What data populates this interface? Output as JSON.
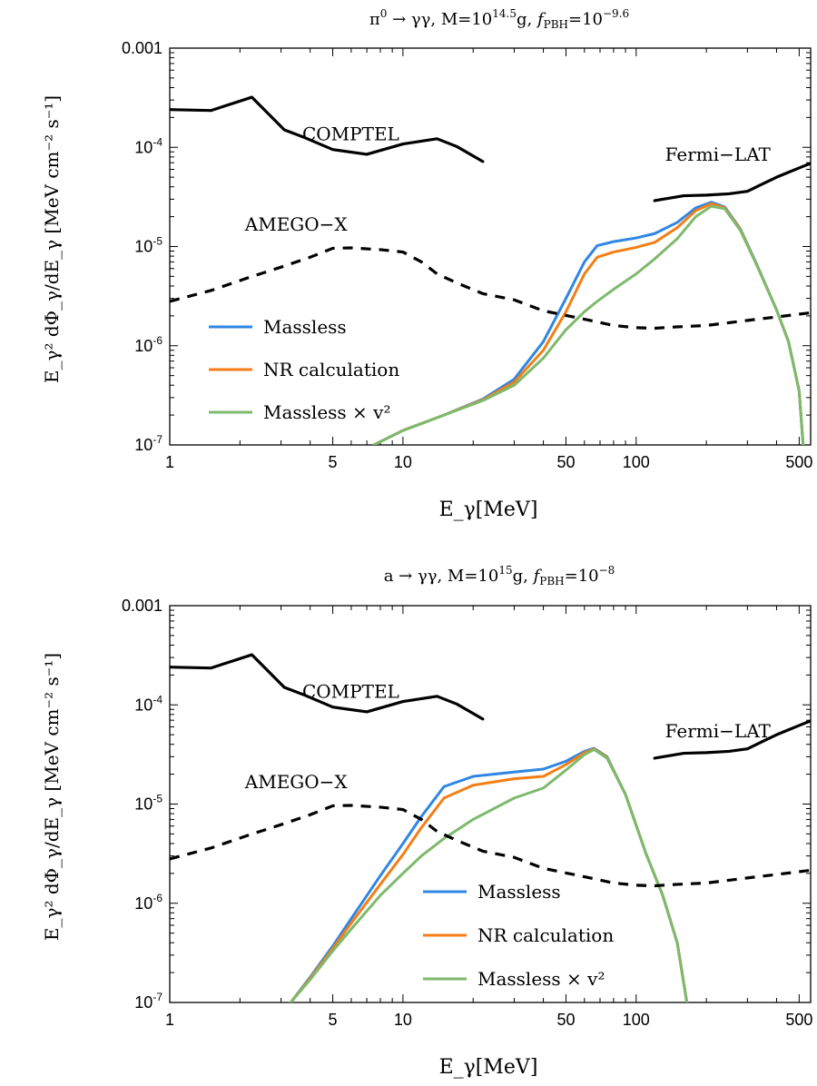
{
  "chart_data": [
    {
      "type": "line",
      "title": "π⁰ → γγ,  M=10¹⁴·⁵g, f_PBH=10⁻⁹·⁶",
      "title_parts": {
        "process": "π",
        "process_sup": "0",
        "arrow": " → γγ,  M=10",
        "mass_exp": "14.5",
        "mass_unit": "g, ",
        "f": "f",
        "f_sub": "PBH",
        "f_eq": "=10",
        "f_exp": "−9.6"
      },
      "xlabel": "E_γ[MeV]",
      "ylabel": "E_γ² dΦ_γ/dE_γ [MeV cm⁻² s⁻¹]",
      "x_scale": "log",
      "y_scale": "log",
      "xlim": [
        1,
        560
      ],
      "ylim": [
        1e-07,
        0.001
      ],
      "x_ticks": [
        {
          "v": 1,
          "label": "1"
        },
        {
          "v": 5,
          "label": "5"
        },
        {
          "v": 10,
          "label": "10"
        },
        {
          "v": 50,
          "label": "50"
        },
        {
          "v": 100,
          "label": "100"
        },
        {
          "v": 500,
          "label": "500"
        }
      ],
      "y_ticks": [
        {
          "v": 0.001,
          "label": "0.001",
          "kind": "plain"
        },
        {
          "v": 0.0001,
          "label": "10",
          "exp": "-4"
        },
        {
          "v": 1e-05,
          "label": "10",
          "exp": "-5"
        },
        {
          "v": 1e-06,
          "label": "10",
          "exp": "-6"
        },
        {
          "v": 1e-07,
          "label": "10",
          "exp": "-7"
        }
      ],
      "legend_position": "bottom-left",
      "legend": [
        "Massless",
        "NR calculation",
        "Massless × v²"
      ],
      "annotations": [
        {
          "text": "COMPTEL",
          "x": 3.7,
          "y": 0.000118
        },
        {
          "text": "AMEGO−X",
          "x": 2.1,
          "y": 1.45e-05
        },
        {
          "text": "Fermi−LAT",
          "x": 133,
          "y": 7.3e-05
        }
      ],
      "series": [
        {
          "name": "Massless",
          "color": "#2f86e4",
          "x": [
            7.5,
            10,
            15,
            22,
            30,
            40,
            50,
            60,
            68,
            80,
            100,
            120,
            150,
            180,
            210,
            240,
            280,
            330,
            400,
            450,
            500,
            520
          ],
          "y": [
            1e-07,
            1.4e-07,
            2e-07,
            2.9e-07,
            4.6e-07,
            1.1e-06,
            3e-06,
            7e-06,
            1.02e-05,
            1.12e-05,
            1.22e-05,
            1.35e-05,
            1.75e-05,
            2.45e-05,
            2.8e-05,
            2.5e-05,
            1.5e-05,
            6.5e-06,
            2.3e-06,
            1.1e-06,
            3.5e-07,
            1e-07
          ]
        },
        {
          "name": "NR calculation",
          "color": "#f47e15",
          "x": [
            7.5,
            10,
            15,
            22,
            30,
            40,
            50,
            60,
            68,
            80,
            100,
            120,
            150,
            180,
            210,
            240,
            280,
            330,
            400,
            450,
            500,
            520
          ],
          "y": [
            1e-07,
            1.4e-07,
            2e-07,
            2.85e-07,
            4.3e-07,
            9e-07,
            2.2e-06,
            5.3e-06,
            7.8e-06,
            8.8e-06,
            9.8e-06,
            1.1e-05,
            1.55e-05,
            2.3e-05,
            2.7e-05,
            2.45e-05,
            1.48e-05,
            6.4e-06,
            2.3e-06,
            1.1e-06,
            3.5e-07,
            1e-07
          ]
        },
        {
          "name": "Massless × v²",
          "color": "#7dba6c",
          "x": [
            7.5,
            10,
            15,
            22,
            30,
            40,
            50,
            60,
            68,
            80,
            100,
            120,
            150,
            180,
            210,
            240,
            280,
            330,
            400,
            450,
            500,
            520
          ],
          "y": [
            1e-07,
            1.4e-07,
            2e-07,
            2.8e-07,
            4e-07,
            7.5e-07,
            1.45e-06,
            2.2e-06,
            2.8e-06,
            3.7e-06,
            5.3e-06,
            7.5e-06,
            1.2e-05,
            2e-05,
            2.55e-05,
            2.4e-05,
            1.45e-05,
            6.4e-06,
            2.3e-06,
            1.1e-06,
            3.5e-07,
            1e-07
          ]
        },
        {
          "name": "COMPTEL",
          "color": "#000000",
          "dash": false,
          "x": [
            1,
            1.5,
            2.25,
            3.1,
            3.8,
            5,
            7,
            10,
            14,
            17,
            22
          ],
          "y": [
            0.00024,
            0.000235,
            0.00032,
            0.00015,
            0.000125,
            9.5e-05,
            8.5e-05,
            0.000108,
            0.000122,
            0.000102,
            7.2e-05
          ]
        },
        {
          "name": "Fermi−LAT",
          "color": "#000000",
          "dash": false,
          "x": [
            120,
            160,
            200,
            250,
            300,
            350,
            400,
            450,
            500,
            560
          ],
          "y": [
            2.9e-05,
            3.25e-05,
            3.3e-05,
            3.4e-05,
            3.6e-05,
            4.3e-05,
            5e-05,
            5.6e-05,
            6.2e-05,
            6.9e-05
          ]
        },
        {
          "name": "AMEGO−X",
          "color": "#000000",
          "dash": true,
          "x": [
            1,
            1.5,
            2.2,
            3,
            4,
            5,
            6,
            8,
            10,
            12,
            14,
            17,
            22,
            30,
            40,
            60,
            80,
            100,
            120,
            150,
            200,
            300,
            400,
            560
          ],
          "y": [
            2.8e-06,
            3.6e-06,
            4.9e-06,
            6.2e-06,
            7.8e-06,
            9.6e-06,
            9.7e-06,
            9.3e-06,
            8.8e-06,
            7e-06,
            5.3e-06,
            4.3e-06,
            3.35e-06,
            2.9e-06,
            2.25e-06,
            1.85e-06,
            1.6e-06,
            1.52e-06,
            1.5e-06,
            1.55e-06,
            1.6e-06,
            1.8e-06,
            1.95e-06,
            2.15e-06
          ]
        }
      ]
    },
    {
      "type": "line",
      "title": "a → γγ,  M=10¹⁵g, f_PBH=10⁻⁸",
      "title_parts": {
        "process": "a",
        "process_sup": "",
        "arrow": " → γγ,  M=10",
        "mass_exp": "15",
        "mass_unit": "g, ",
        "f": "f",
        "f_sub": "PBH",
        "f_eq": "=10",
        "f_exp": "−8"
      },
      "xlabel": "E_γ[MeV]",
      "ylabel": "E_γ² dΦ_γ/dE_γ [MeV cm⁻² s⁻¹]",
      "x_scale": "log",
      "y_scale": "log",
      "xlim": [
        1,
        560
      ],
      "ylim": [
        1e-07,
        0.001
      ],
      "x_ticks": [
        {
          "v": 1,
          "label": "1"
        },
        {
          "v": 5,
          "label": "5"
        },
        {
          "v": 10,
          "label": "10"
        },
        {
          "v": 50,
          "label": "50"
        },
        {
          "v": 100,
          "label": "100"
        },
        {
          "v": 500,
          "label": "500"
        }
      ],
      "y_ticks": [
        {
          "v": 0.001,
          "label": "0.001",
          "kind": "plain"
        },
        {
          "v": 0.0001,
          "label": "10",
          "exp": "-4"
        },
        {
          "v": 1e-05,
          "label": "10",
          "exp": "-5"
        },
        {
          "v": 1e-06,
          "label": "10",
          "exp": "-6"
        },
        {
          "v": 1e-07,
          "label": "10",
          "exp": "-7"
        }
      ],
      "legend_position": "bottom-center",
      "legend": [
        "Massless",
        "NR calculation",
        "Massless × v²"
      ],
      "annotations": [
        {
          "text": "COMPTEL",
          "x": 3.7,
          "y": 0.000118
        },
        {
          "text": "AMEGO−X",
          "x": 2.1,
          "y": 1.45e-05
        },
        {
          "text": "Fermi−LAT",
          "x": 133,
          "y": 4.7e-05
        }
      ],
      "series": [
        {
          "name": "Massless",
          "color": "#2f86e4",
          "x": [
            3.3,
            4,
            5,
            6,
            8,
            10,
            12,
            15,
            20,
            30,
            40,
            50,
            60,
            66,
            75,
            90,
            110,
            130,
            150,
            165
          ],
          "y": [
            1e-07,
            1.8e-07,
            3.7e-07,
            7e-07,
            1.9e-06,
            4e-06,
            7.5e-06,
            1.5e-05,
            1.9e-05,
            2.1e-05,
            2.25e-05,
            2.7e-05,
            3.4e-05,
            3.65e-05,
            3e-05,
            1.25e-05,
            3.2e-06,
            1.2e-06,
            4e-07,
            1e-07
          ]
        },
        {
          "name": "NR calculation",
          "color": "#f47e15",
          "x": [
            3.3,
            4,
            5,
            6,
            8,
            10,
            12,
            15,
            20,
            30,
            40,
            50,
            60,
            66,
            75,
            90,
            110,
            130,
            150,
            165
          ],
          "y": [
            1e-07,
            1.75e-07,
            3.5e-07,
            6.3e-07,
            1.55e-06,
            3.1e-06,
            5.8e-06,
            1.15e-05,
            1.55e-05,
            1.8e-05,
            1.9e-05,
            2.5e-05,
            3.3e-05,
            3.6e-05,
            2.95e-05,
            1.25e-05,
            3.2e-06,
            1.2e-06,
            4e-07,
            1e-07
          ]
        },
        {
          "name": "Massless × v²",
          "color": "#7dba6c",
          "x": [
            3.3,
            4,
            5,
            6,
            8,
            10,
            12,
            15,
            20,
            30,
            40,
            50,
            60,
            66,
            75,
            90,
            110,
            130,
            150,
            165
          ],
          "y": [
            1e-07,
            1.7e-07,
            3.3e-07,
            5.5e-07,
            1.2e-06,
            2e-06,
            3e-06,
            4.5e-06,
            7e-06,
            1.15e-05,
            1.45e-05,
            2.2e-05,
            3.15e-05,
            3.55e-05,
            2.9e-05,
            1.25e-05,
            3.2e-06,
            1.2e-06,
            4e-07,
            1e-07
          ]
        },
        {
          "name": "COMPTEL",
          "color": "#000000",
          "dash": false,
          "x": [
            1,
            1.5,
            2.25,
            3.1,
            3.8,
            5,
            7,
            10,
            14,
            17,
            22
          ],
          "y": [
            0.00024,
            0.000235,
            0.00032,
            0.00015,
            0.000125,
            9.5e-05,
            8.5e-05,
            0.000108,
            0.000122,
            0.000102,
            7.2e-05
          ]
        },
        {
          "name": "Fermi−LAT",
          "color": "#000000",
          "dash": false,
          "x": [
            120,
            160,
            200,
            250,
            300,
            350,
            400,
            450,
            500,
            560
          ],
          "y": [
            2.9e-05,
            3.25e-05,
            3.3e-05,
            3.4e-05,
            3.6e-05,
            4.3e-05,
            5e-05,
            5.6e-05,
            6.2e-05,
            6.9e-05
          ]
        },
        {
          "name": "AMEGO−X",
          "color": "#000000",
          "dash": true,
          "x": [
            1,
            1.5,
            2.2,
            3,
            4,
            5,
            6,
            8,
            10,
            12,
            14,
            17,
            22,
            30,
            40,
            60,
            80,
            100,
            120,
            150,
            200,
            300,
            400,
            560
          ],
          "y": [
            2.8e-06,
            3.6e-06,
            4.9e-06,
            6.2e-06,
            7.8e-06,
            9.6e-06,
            9.7e-06,
            9.3e-06,
            8.8e-06,
            7e-06,
            5.3e-06,
            4.3e-06,
            3.35e-06,
            2.9e-06,
            2.25e-06,
            1.85e-06,
            1.6e-06,
            1.52e-06,
            1.5e-06,
            1.55e-06,
            1.6e-06,
            1.8e-06,
            1.95e-06,
            2.15e-06
          ]
        }
      ]
    }
  ]
}
